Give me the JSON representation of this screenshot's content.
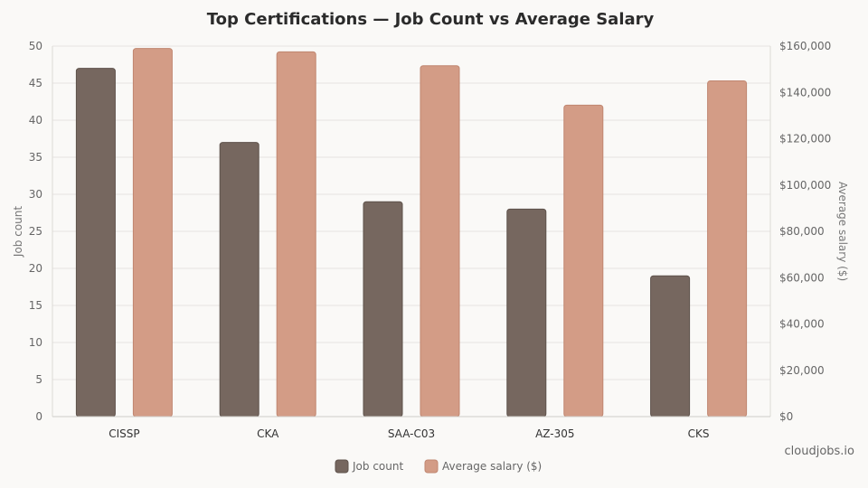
{
  "chart_data": {
    "type": "bar",
    "title": "Top Certifications — Job Count vs Average Salary",
    "categories": [
      "CISSP",
      "CKA",
      "SAA-C03",
      "AZ-305",
      "CKS"
    ],
    "series": [
      {
        "name": "Job count",
        "axis": "left",
        "color": "#76675f",
        "values": [
          47,
          37,
          29,
          28,
          19
        ]
      },
      {
        "name": "Average salary ($)",
        "axis": "right",
        "color": "#d39c86",
        "values": [
          159000,
          157500,
          151500,
          134500,
          145000
        ]
      }
    ],
    "ylabel": "Job count",
    "ylabel_right": "Average salary ($)",
    "ylim": [
      0,
      50
    ],
    "ylim_right": [
      0,
      160000
    ],
    "yticks": [
      "0",
      "5",
      "10",
      "15",
      "20",
      "25",
      "30",
      "35",
      "40",
      "45",
      "50"
    ],
    "yticks_right": [
      "$0",
      "$20,000",
      "$40,000",
      "$60,000",
      "$80,000",
      "$100,000",
      "$120,000",
      "$140,000",
      "$160,000"
    ],
    "grid": true,
    "legend_position": "bottom-center"
  },
  "source": "cloudjobs.io"
}
